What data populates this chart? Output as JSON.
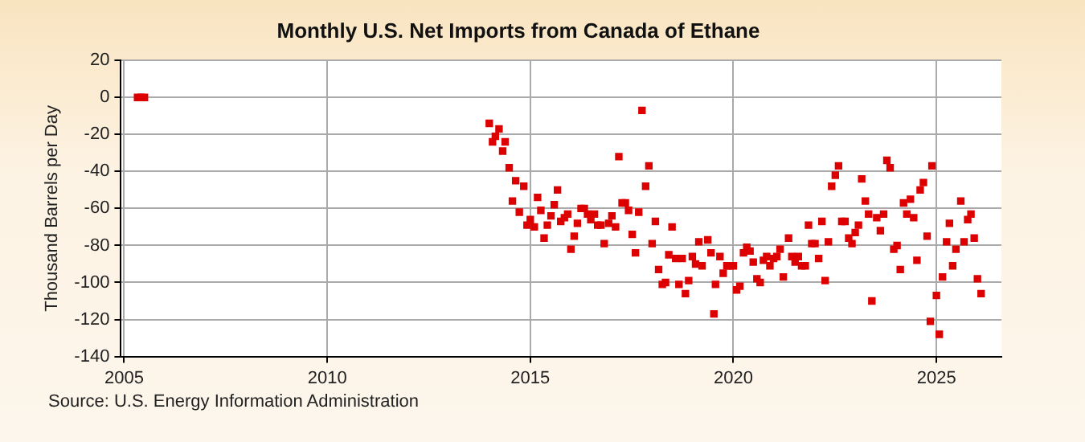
{
  "chart_data": {
    "type": "scatter",
    "title": "Monthly U.S. Net Imports from Canada of Ethane",
    "ylabel": "Thousand Barrels per Day",
    "annotations": [
      "Source: U.S. Energy Information Administration"
    ],
    "xlim": [
      2004.92,
      2026.6
    ],
    "xticks": [
      2005,
      2010,
      2015,
      2020,
      2025
    ],
    "ylim": [
      -140,
      20
    ],
    "yticks": [
      20,
      0,
      -20,
      -40,
      -60,
      -80,
      -100,
      -120,
      -140
    ],
    "grid": true,
    "marker": "square",
    "legend": false,
    "series": [
      {
        "color": "#dd0000",
        "x": [
          2005.33,
          2005.42,
          2005.5,
          2013.99,
          2014.07,
          2014.14,
          2014.23,
          2014.32,
          2014.38,
          2014.48,
          2014.56,
          2014.64,
          2014.73,
          2014.84,
          2014.92,
          2015.0,
          2015.1,
          2015.18,
          2015.26,
          2015.34,
          2015.42,
          2015.51,
          2015.59,
          2015.67,
          2015.75,
          2015.84,
          2015.92,
          2016.0,
          2016.08,
          2016.16,
          2016.25,
          2016.33,
          2016.41,
          2016.49,
          2016.58,
          2016.66,
          2016.74,
          2016.82,
          2016.93,
          2017.01,
          2017.1,
          2017.18,
          2017.26,
          2017.34,
          2017.42,
          2017.51,
          2017.59,
          2017.67,
          2017.75,
          2017.84,
          2017.92,
          2018.0,
          2018.08,
          2018.16,
          2018.25,
          2018.33,
          2018.41,
          2018.49,
          2018.58,
          2018.66,
          2018.74,
          2018.82,
          2018.9,
          2018.99,
          2019.07,
          2019.15,
          2019.23,
          2019.37,
          2019.45,
          2019.52,
          2019.56,
          2019.67,
          2019.75,
          2019.84,
          2019.92,
          2020.0,
          2020.08,
          2020.16,
          2020.25,
          2020.33,
          2020.41,
          2020.49,
          2020.58,
          2020.66,
          2020.74,
          2020.82,
          2020.9,
          2020.99,
          2021.07,
          2021.15,
          2021.23,
          2021.36,
          2021.44,
          2021.52,
          2021.6,
          2021.68,
          2021.77,
          2021.85,
          2021.93,
          2022.01,
          2022.1,
          2022.18,
          2022.26,
          2022.34,
          2022.42,
          2022.51,
          2022.59,
          2022.67,
          2022.75,
          2022.84,
          2022.92,
          2023.0,
          2023.08,
          2023.16,
          2023.25,
          2023.33,
          2023.41,
          2023.53,
          2023.62,
          2023.7,
          2023.78,
          2023.86,
          2023.95,
          2024.03,
          2024.11,
          2024.19,
          2024.27,
          2024.36,
          2024.44,
          2024.52,
          2024.6,
          2024.68,
          2024.77,
          2024.85,
          2024.89,
          2025.0,
          2025.07,
          2025.15,
          2025.25,
          2025.32,
          2025.4,
          2025.48,
          2025.6,
          2025.68,
          2025.77,
          2025.85,
          2025.93,
          2026.01,
          2026.1
        ],
        "values": [
          0,
          0,
          0,
          -14,
          -24,
          -21,
          -17,
          -29,
          -24,
          -38,
          -56,
          -45,
          -62,
          -48,
          -69,
          -66,
          -70,
          -54,
          -61,
          -76,
          -69,
          -64,
          -58,
          -50,
          -67,
          -65,
          -63,
          -82,
          -75,
          -68,
          -60,
          -60,
          -63,
          -66,
          -63,
          -69,
          -69,
          -79,
          -68,
          -64,
          -70,
          -32,
          -57,
          -57,
          -61,
          -74,
          -84,
          -62,
          -7,
          -48,
          -37,
          -79,
          -67,
          -93,
          -101,
          -100,
          -85,
          -70,
          -87,
          -101,
          -87,
          -106,
          -99,
          -86,
          -90,
          -78,
          -91,
          -77,
          -84,
          -117,
          -101,
          -86,
          -95,
          -91,
          -91,
          -91,
          -104,
          -102,
          -84,
          -81,
          -83,
          -89,
          -98,
          -100,
          -88,
          -86,
          -91,
          -87,
          -86,
          -82,
          -97,
          -76,
          -86,
          -89,
          -86,
          -91,
          -91,
          -69,
          -79,
          -79,
          -87,
          -67,
          -99,
          -78,
          -48,
          -42,
          -37,
          -67,
          -67,
          -76,
          -79,
          -73,
          -69,
          -44,
          -56,
          -63,
          -110,
          -65,
          -72,
          -63,
          -34,
          -38,
          -82,
          -80,
          -93,
          -57,
          -63,
          -55,
          -65,
          -88,
          -50,
          -46,
          -75,
          -121,
          -37,
          -107,
          -128,
          -97,
          -78,
          -68,
          -91,
          -82,
          -56,
          -78,
          -66,
          -63,
          -76,
          -98,
          -106
        ]
      }
    ]
  }
}
